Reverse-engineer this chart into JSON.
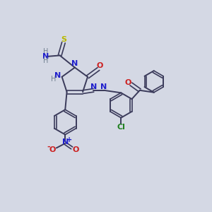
{
  "bg_color": "#d4d8e4",
  "bond_color": "#3a3a5a",
  "N_color": "#2020cc",
  "O_color": "#cc2020",
  "S_color": "#b8b800",
  "Cl_color": "#208020",
  "H_color": "#708090",
  "figsize": [
    3.0,
    3.0
  ],
  "dpi": 100,
  "xlim": [
    0,
    10
  ],
  "ylim": [
    0,
    10
  ]
}
